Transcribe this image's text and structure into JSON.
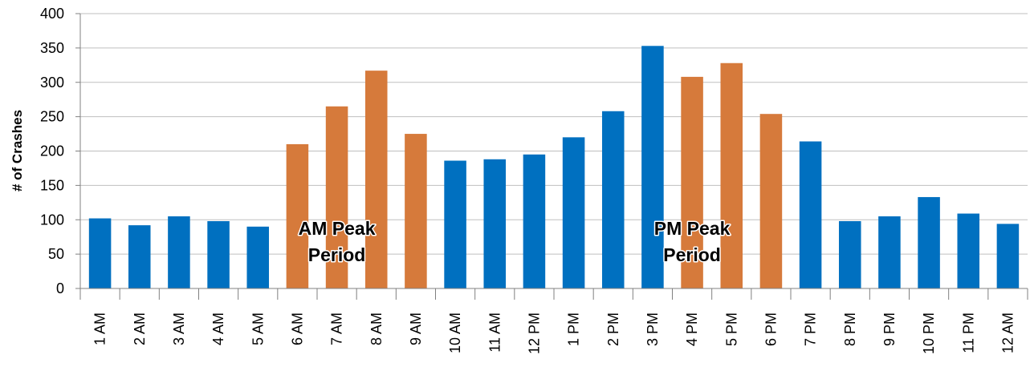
{
  "chart_data": {
    "type": "bar",
    "ylabel": "# of Crashes",
    "xlabel": "",
    "ylim": [
      0,
      400
    ],
    "ytick_step": 50,
    "grid": true,
    "categories": [
      "1 AM",
      "2 AM",
      "3 AM",
      "4 AM",
      "5 AM",
      "6 AM",
      "7 AM",
      "8 AM",
      "9 AM",
      "10 AM",
      "11 AM",
      "12 PM",
      "1 PM",
      "2 PM",
      "3 PM",
      "4 PM",
      "5 PM",
      "6 PM",
      "7 PM",
      "8 PM",
      "9 PM",
      "10 PM",
      "11 PM",
      "12 AM"
    ],
    "values": [
      102,
      92,
      105,
      98,
      90,
      210,
      265,
      317,
      225,
      186,
      188,
      195,
      220,
      258,
      353,
      308,
      328,
      254,
      214,
      98,
      105,
      133,
      109,
      94
    ],
    "peak": [
      false,
      false,
      false,
      false,
      false,
      true,
      true,
      true,
      true,
      false,
      false,
      false,
      false,
      false,
      false,
      true,
      true,
      true,
      false,
      false,
      false,
      false,
      false,
      false
    ],
    "colors": {
      "normal": "#0070c0",
      "peak": "#d67a3b"
    },
    "annotations": [
      {
        "lines": [
          "AM Peak",
          "Period"
        ],
        "anchor_category": "7 AM"
      },
      {
        "lines": [
          "PM Peak",
          "Period"
        ],
        "anchor_category": "4 PM"
      }
    ]
  }
}
